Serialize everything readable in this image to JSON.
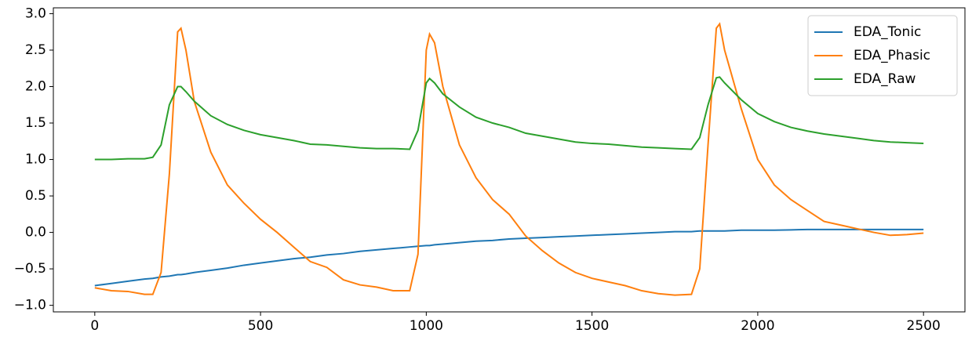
{
  "chart_data": {
    "type": "line",
    "x": [
      0,
      50,
      100,
      150,
      175,
      200,
      225,
      250,
      260,
      275,
      300,
      350,
      400,
      450,
      500,
      550,
      600,
      650,
      700,
      750,
      800,
      850,
      900,
      950,
      975,
      1000,
      1010,
      1025,
      1050,
      1100,
      1150,
      1200,
      1250,
      1300,
      1350,
      1400,
      1450,
      1500,
      1550,
      1600,
      1650,
      1700,
      1750,
      1800,
      1825,
      1850,
      1875,
      1885,
      1900,
      1950,
      2000,
      2050,
      2100,
      2150,
      2200,
      2250,
      2300,
      2350,
      2400,
      2450,
      2500
    ],
    "series": [
      {
        "name": "EDA_Tonic",
        "color": "#1f77b4",
        "values": [
          -0.73,
          -0.7,
          -0.67,
          -0.64,
          -0.63,
          -0.61,
          -0.6,
          -0.58,
          -0.58,
          -0.57,
          -0.55,
          -0.52,
          -0.49,
          -0.45,
          -0.42,
          -0.39,
          -0.36,
          -0.34,
          -0.31,
          -0.29,
          -0.26,
          -0.24,
          -0.22,
          -0.2,
          -0.19,
          -0.18,
          -0.18,
          -0.17,
          -0.16,
          -0.14,
          -0.12,
          -0.11,
          -0.09,
          -0.08,
          -0.07,
          -0.06,
          -0.05,
          -0.04,
          -0.03,
          -0.02,
          -0.01,
          0.0,
          0.01,
          0.01,
          0.02,
          0.02,
          0.02,
          0.02,
          0.02,
          0.03,
          0.03,
          0.03,
          0.035,
          0.04,
          0.04,
          0.04,
          0.04,
          0.04,
          0.04,
          0.04,
          0.04
        ]
      },
      {
        "name": "EDA_Phasic",
        "color": "#ff7f0e",
        "values": [
          -0.76,
          -0.8,
          -0.81,
          -0.85,
          -0.85,
          -0.55,
          0.8,
          2.75,
          2.8,
          2.5,
          1.8,
          1.1,
          0.65,
          0.4,
          0.18,
          0.0,
          -0.2,
          -0.4,
          -0.48,
          -0.65,
          -0.72,
          -0.75,
          -0.8,
          -0.8,
          -0.3,
          2.5,
          2.72,
          2.6,
          2.0,
          1.2,
          0.75,
          0.45,
          0.25,
          -0.05,
          -0.25,
          -0.42,
          -0.55,
          -0.63,
          -0.68,
          -0.73,
          -0.8,
          -0.84,
          -0.86,
          -0.85,
          -0.5,
          1.2,
          2.8,
          2.86,
          2.5,
          1.7,
          1.0,
          0.65,
          0.45,
          0.3,
          0.15,
          0.1,
          0.05,
          0.0,
          -0.04,
          -0.03,
          -0.01
        ]
      },
      {
        "name": "EDA_Raw",
        "color": "#2ca02c",
        "values": [
          1.0,
          1.0,
          1.01,
          1.01,
          1.03,
          1.2,
          1.75,
          2.0,
          2.0,
          1.93,
          1.8,
          1.6,
          1.48,
          1.4,
          1.34,
          1.3,
          1.26,
          1.21,
          1.2,
          1.18,
          1.16,
          1.15,
          1.15,
          1.14,
          1.4,
          2.05,
          2.11,
          2.05,
          1.9,
          1.72,
          1.58,
          1.5,
          1.44,
          1.36,
          1.32,
          1.28,
          1.24,
          1.22,
          1.21,
          1.19,
          1.17,
          1.16,
          1.15,
          1.14,
          1.3,
          1.75,
          2.12,
          2.13,
          2.05,
          1.82,
          1.63,
          1.52,
          1.44,
          1.39,
          1.35,
          1.32,
          1.29,
          1.26,
          1.24,
          1.23,
          1.22
        ]
      }
    ],
    "xlim": [
      -125,
      2625
    ],
    "xticks": [
      0,
      500,
      1000,
      1500,
      2000,
      2500
    ],
    "ylim": [
      -1.09,
      3.08
    ],
    "yticks": [
      {
        "value": -1,
        "label": "−1.0"
      },
      {
        "value": -0.5,
        "label": "−0.5"
      },
      {
        "value": 0,
        "label": "0.0"
      },
      {
        "value": 0.5,
        "label": "0.5"
      },
      {
        "value": 1,
        "label": "1.0"
      },
      {
        "value": 1.5,
        "label": "1.5"
      },
      {
        "value": 2,
        "label": "2.0"
      },
      {
        "value": 2.5,
        "label": "2.5"
      },
      {
        "value": 3,
        "label": "3.0"
      }
    ],
    "legend": "upper right"
  }
}
